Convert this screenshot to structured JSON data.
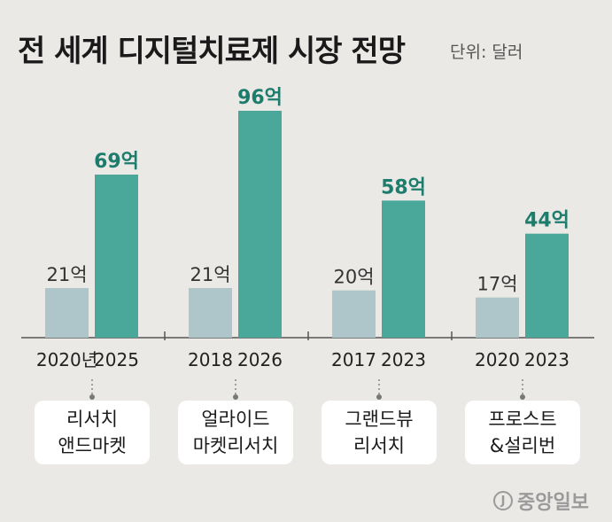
{
  "title": "전 세계 디지털치료제 시장 전망",
  "unit": "단위: 달러",
  "colors": {
    "past": "#aec6c9",
    "forecast": "#4aa89a",
    "forecast_label": "#1e7c6c",
    "past_label": "#333333",
    "background": "#ebe9e6"
  },
  "chart_data": {
    "type": "bar",
    "title": "전 세계 디지털치료제 시장 전망",
    "ylabel": "",
    "ylim": [
      0,
      100
    ],
    "groups": [
      {
        "source": "리서치\n앤드마켓",
        "bars": [
          {
            "x": "2020년",
            "value": 21,
            "label": "21억"
          },
          {
            "x": "2025",
            "value": 69,
            "label": "69억"
          }
        ]
      },
      {
        "source": "얼라이드\n마켓리서치",
        "bars": [
          {
            "x": "2018",
            "value": 21,
            "label": "21억"
          },
          {
            "x": "2026",
            "value": 96,
            "label": "96억"
          }
        ]
      },
      {
        "source": "그랜드뷰\n리서치",
        "bars": [
          {
            "x": "2017",
            "value": 20,
            "label": "20억"
          },
          {
            "x": "2023",
            "value": 58,
            "label": "58억"
          }
        ]
      },
      {
        "source": "프로스트\n&설리번",
        "bars": [
          {
            "x": "2020",
            "value": 17,
            "label": "17억"
          },
          {
            "x": "2023",
            "value": 44,
            "label": "44억"
          }
        ]
      }
    ]
  },
  "logo": {
    "text": "중앙일보",
    "mark": "J"
  }
}
